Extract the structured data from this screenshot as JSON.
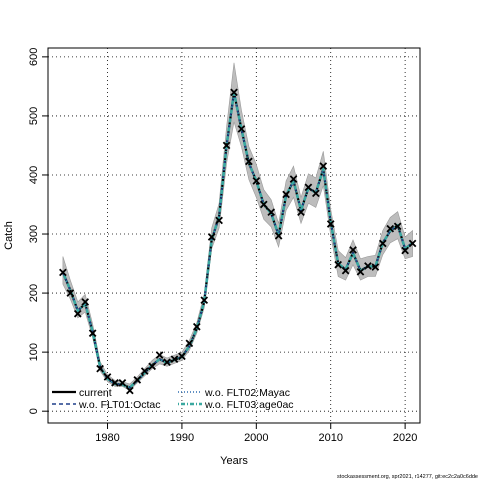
{
  "chart_data": {
    "type": "line",
    "xlabel": "Years",
    "ylabel": "Catch",
    "xlim": [
      1972,
      2022
    ],
    "ylim": [
      -20,
      615
    ],
    "xticks": [
      1980,
      1990,
      2000,
      2010,
      2020
    ],
    "yticks": [
      0,
      100,
      200,
      300,
      400,
      500,
      600
    ],
    "grid": true,
    "legend_placement": "bottom-left",
    "x": [
      1974,
      1975,
      1976,
      1977,
      1978,
      1979,
      1980,
      1981,
      1982,
      1983,
      1984,
      1985,
      1986,
      1987,
      1988,
      1989,
      1990,
      1991,
      1992,
      1993,
      1994,
      1995,
      1996,
      1997,
      1998,
      1999,
      2000,
      2001,
      2002,
      2003,
      2004,
      2005,
      2006,
      2007,
      2008,
      2009,
      2010,
      2011,
      2012,
      2013,
      2014,
      2015,
      2016,
      2017,
      2018,
      2019,
      2020,
      2021
    ],
    "series": [
      {
        "name": "current",
        "color": "#000000",
        "style": "solid",
        "values": [
          235,
          205,
          170,
          182,
          135,
          75,
          55,
          46,
          45,
          40,
          52,
          65,
          78,
          88,
          82,
          87,
          92,
          110,
          140,
          185,
          290,
          330,
          450,
          540,
          478,
          420,
          390,
          350,
          335,
          298,
          365,
          390,
          340,
          378,
          370,
          410,
          320,
          250,
          240,
          268,
          238,
          245,
          245,
          285,
          305,
          315,
          275,
          285
        ]
      },
      {
        "name": "w.o. FLT01:Octac",
        "color": "#1f3f8a",
        "style": "dashed",
        "values": [
          235,
          205,
          170,
          182,
          135,
          75,
          55,
          46,
          45,
          40,
          52,
          65,
          78,
          88,
          82,
          87,
          92,
          110,
          140,
          185,
          290,
          330,
          450,
          540,
          478,
          420,
          390,
          350,
          335,
          298,
          365,
          390,
          340,
          378,
          370,
          410,
          320,
          250,
          240,
          268,
          238,
          245,
          245,
          285,
          305,
          315,
          275,
          285
        ]
      },
      {
        "name": "w.o. FLT02:Mayac",
        "color": "#2f6db0",
        "style": "dotted",
        "values": [
          235,
          205,
          170,
          182,
          135,
          75,
          55,
          46,
          45,
          40,
          52,
          65,
          78,
          88,
          82,
          87,
          92,
          110,
          140,
          185,
          290,
          330,
          450,
          540,
          478,
          420,
          390,
          350,
          335,
          298,
          365,
          390,
          340,
          378,
          370,
          410,
          320,
          250,
          240,
          268,
          238,
          245,
          245,
          285,
          305,
          315,
          275,
          285
        ]
      },
      {
        "name": "w.o. FLT03:age0ac",
        "color": "#3aa8a0",
        "style": "dotdash",
        "values": [
          235,
          205,
          170,
          182,
          135,
          75,
          55,
          46,
          45,
          40,
          52,
          65,
          78,
          88,
          82,
          87,
          92,
          110,
          140,
          185,
          290,
          330,
          450,
          540,
          478,
          420,
          390,
          350,
          335,
          298,
          365,
          390,
          340,
          378,
          370,
          410,
          320,
          250,
          240,
          268,
          238,
          245,
          245,
          285,
          305,
          315,
          275,
          285
        ]
      }
    ],
    "observed": {
      "x": [
        1974,
        1975,
        1976,
        1977,
        1978,
        1979,
        1980,
        1981,
        1982,
        1983,
        1984,
        1985,
        1986,
        1987,
        1988,
        1989,
        1990,
        1991,
        1992,
        1993,
        1994,
        1995,
        1996,
        1997,
        1998,
        1999,
        2000,
        2001,
        2002,
        2003,
        2004,
        2005,
        2006,
        2007,
        2008,
        2009,
        2010,
        2011,
        2012,
        2013,
        2014,
        2015,
        2016,
        2017,
        2018,
        2019,
        2020,
        2021
      ],
      "values": [
        235,
        200,
        165,
        185,
        132,
        72,
        58,
        48,
        48,
        35,
        53,
        68,
        76,
        95,
        83,
        88,
        93,
        115,
        143,
        188,
        295,
        323,
        450,
        540,
        478,
        423,
        390,
        350,
        337,
        297,
        367,
        393,
        337,
        379,
        369,
        415,
        317,
        248,
        238,
        273,
        236,
        246,
        244,
        284,
        309,
        313,
        272,
        284
      ]
    },
    "band": {
      "color": "#bdbdbd",
      "lower": [
        215,
        190,
        158,
        168,
        125,
        68,
        50,
        42,
        42,
        35,
        48,
        60,
        72,
        80,
        76,
        81,
        86,
        103,
        132,
        175,
        275,
        310,
        420,
        490,
        448,
        392,
        362,
        325,
        312,
        278,
        340,
        362,
        318,
        352,
        345,
        382,
        298,
        228,
        222,
        248,
        222,
        228,
        228,
        265,
        285,
        292,
        258,
        262
      ],
      "upper": [
        262,
        222,
        185,
        198,
        148,
        84,
        62,
        52,
        50,
        46,
        58,
        72,
        86,
        96,
        90,
        95,
        100,
        120,
        150,
        198,
        310,
        352,
        482,
        590,
        510,
        448,
        418,
        375,
        358,
        318,
        390,
        415,
        362,
        402,
        395,
        440,
        342,
        272,
        260,
        290,
        258,
        262,
        264,
        306,
        328,
        338,
        295,
        306
      ]
    },
    "legend": [
      {
        "label": "current",
        "series": 0
      },
      {
        "label": "w.o. FLT01:Octac",
        "series": 1
      },
      {
        "label": "w.o. FLT02:Mayac",
        "series": 2
      },
      {
        "label": "w.o. FLT03:age0ac",
        "series": 3
      }
    ]
  },
  "footnote": "stockassessment.org, spr2021, r14277, git:ec2c2a0c6dde"
}
